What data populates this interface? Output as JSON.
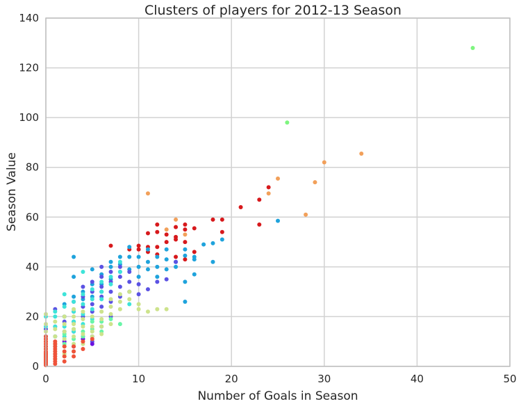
{
  "chart_data": {
    "type": "scatter",
    "title": "Clusters of players for 2012-13 Season",
    "xlabel": "Number of Goals in Season",
    "ylabel": "Season Value",
    "xlim": [
      0,
      50
    ],
    "ylim": [
      0,
      140
    ],
    "xticks": [
      0,
      10,
      20,
      30,
      40,
      50
    ],
    "yticks": [
      0,
      20,
      40,
      60,
      80,
      100,
      120,
      140
    ],
    "grid": true,
    "legend": "none",
    "clusters": [
      {
        "color": "#7ef57f",
        "points": [
          [
            46,
            128
          ],
          [
            26,
            98
          ]
        ]
      },
      {
        "color": "#f2a05a",
        "points": [
          [
            34,
            85.5
          ],
          [
            30,
            82
          ],
          [
            29,
            74
          ],
          [
            25,
            75.5
          ],
          [
            24,
            69.5
          ],
          [
            28,
            61
          ],
          [
            11,
            69.5
          ],
          [
            14,
            59
          ],
          [
            13,
            55
          ],
          [
            15,
            53
          ]
        ]
      },
      {
        "color": "#d7191c",
        "points": [
          [
            24,
            72
          ],
          [
            23,
            67
          ],
          [
            21,
            64
          ],
          [
            19,
            59
          ],
          [
            18,
            59
          ],
          [
            19,
            54
          ],
          [
            23,
            57
          ],
          [
            16,
            55.5
          ],
          [
            15,
            57
          ],
          [
            15,
            55
          ],
          [
            14,
            56
          ],
          [
            14,
            52
          ],
          [
            13,
            53
          ],
          [
            12,
            57
          ],
          [
            12,
            54
          ],
          [
            11,
            53.5
          ],
          [
            11,
            48
          ],
          [
            10,
            48.5
          ],
          [
            10,
            47
          ],
          [
            12,
            48
          ],
          [
            13,
            50
          ],
          [
            14,
            51
          ],
          [
            15,
            50
          ],
          [
            16,
            46
          ],
          [
            15,
            43
          ],
          [
            14,
            44
          ],
          [
            12,
            45
          ],
          [
            11,
            46
          ],
          [
            9,
            47
          ],
          [
            7,
            48.5
          ]
        ]
      },
      {
        "color": "#1fa3dc",
        "points": [
          [
            25,
            58.5
          ],
          [
            19,
            51
          ],
          [
            18,
            49.5
          ],
          [
            17,
            49
          ],
          [
            18,
            42
          ],
          [
            16,
            43
          ],
          [
            16,
            44
          ],
          [
            15,
            47
          ],
          [
            15,
            44.5
          ],
          [
            15,
            34
          ],
          [
            15,
            26
          ],
          [
            14,
            40
          ],
          [
            14,
            42
          ],
          [
            13,
            39
          ],
          [
            13,
            43
          ],
          [
            13,
            47
          ],
          [
            12,
            40
          ],
          [
            12,
            44
          ],
          [
            12,
            36
          ],
          [
            11,
            39
          ],
          [
            11,
            42
          ],
          [
            11,
            47
          ],
          [
            10,
            40
          ],
          [
            10,
            44
          ],
          [
            10,
            36
          ],
          [
            9,
            39
          ],
          [
            9,
            44
          ],
          [
            9,
            48
          ],
          [
            8,
            41
          ],
          [
            8,
            38
          ],
          [
            8,
            44
          ],
          [
            7,
            35
          ],
          [
            7,
            40
          ],
          [
            7,
            42
          ],
          [
            6,
            33
          ],
          [
            6,
            37
          ],
          [
            6,
            30
          ],
          [
            5,
            28
          ],
          [
            5,
            33
          ],
          [
            5,
            39
          ],
          [
            4,
            27
          ],
          [
            4,
            30
          ],
          [
            3,
            36
          ],
          [
            3,
            44
          ],
          [
            3,
            28
          ],
          [
            2,
            25
          ],
          [
            16,
            37
          ]
        ]
      },
      {
        "color": "#5b52e3",
        "points": [
          [
            14,
            42
          ],
          [
            13,
            35
          ],
          [
            12,
            34
          ],
          [
            11,
            31
          ],
          [
            10,
            29
          ],
          [
            10,
            33
          ],
          [
            9,
            30
          ],
          [
            9,
            34
          ],
          [
            9,
            38
          ],
          [
            8,
            28
          ],
          [
            8,
            32
          ],
          [
            8,
            36
          ],
          [
            8,
            40
          ],
          [
            7,
            26
          ],
          [
            7,
            30
          ],
          [
            7,
            34
          ],
          [
            7,
            38
          ],
          [
            6,
            24
          ],
          [
            6,
            28
          ],
          [
            6,
            32
          ],
          [
            6,
            36
          ],
          [
            6,
            40
          ],
          [
            5,
            22
          ],
          [
            5,
            25
          ],
          [
            5,
            30
          ],
          [
            5,
            34
          ],
          [
            4,
            20
          ],
          [
            4,
            24
          ],
          [
            4,
            28
          ],
          [
            4,
            32
          ],
          [
            3,
            18
          ],
          [
            3,
            22
          ],
          [
            3,
            26
          ],
          [
            2,
            14
          ],
          [
            2,
            18
          ],
          [
            2,
            20
          ],
          [
            1,
            12
          ],
          [
            1,
            16
          ],
          [
            1,
            23
          ],
          [
            0,
            12
          ],
          [
            0,
            15
          ],
          [
            5,
            10
          ],
          [
            4,
            12
          ],
          [
            3,
            14
          ],
          [
            6,
            16
          ],
          [
            7,
            20
          ]
        ]
      },
      {
        "color": "#6a11e0",
        "points": [
          [
            5,
            9
          ],
          [
            4,
            11
          ],
          [
            3,
            8
          ],
          [
            2,
            10
          ],
          [
            5,
            12
          ]
        ]
      },
      {
        "color": "#3ee4d9",
        "points": [
          [
            8,
            38
          ],
          [
            7,
            33
          ],
          [
            7,
            36
          ],
          [
            6,
            27
          ],
          [
            6,
            30
          ],
          [
            6,
            34
          ],
          [
            5,
            19
          ],
          [
            5,
            23
          ],
          [
            5,
            27
          ],
          [
            5,
            31
          ],
          [
            4,
            17
          ],
          [
            4,
            21
          ],
          [
            4,
            25
          ],
          [
            4,
            29
          ],
          [
            4,
            38
          ],
          [
            3,
            14
          ],
          [
            3,
            18
          ],
          [
            3,
            22
          ],
          [
            3,
            26
          ],
          [
            2,
            12
          ],
          [
            2,
            16
          ],
          [
            2,
            20
          ],
          [
            2,
            24
          ],
          [
            2,
            29
          ],
          [
            1,
            8
          ],
          [
            1,
            12
          ],
          [
            1,
            16
          ],
          [
            1,
            20
          ],
          [
            1,
            22
          ],
          [
            0,
            8
          ],
          [
            0,
            12
          ],
          [
            0,
            16
          ],
          [
            0,
            20
          ],
          [
            8,
            42
          ],
          [
            9,
            25
          ]
        ]
      },
      {
        "color": "#68f5a8",
        "points": [
          [
            8,
            17
          ],
          [
            7,
            19
          ],
          [
            6,
            14
          ],
          [
            5,
            15
          ],
          [
            4,
            12
          ],
          [
            4,
            14
          ],
          [
            3,
            11
          ],
          [
            3,
            15
          ],
          [
            2,
            9
          ],
          [
            2,
            13
          ],
          [
            1,
            5
          ],
          [
            1,
            9
          ],
          [
            0,
            4
          ],
          [
            0,
            7
          ],
          [
            5,
            18
          ],
          [
            6,
            18
          ]
        ]
      },
      {
        "color": "#cde38c",
        "points": [
          [
            12,
            23
          ],
          [
            11,
            22
          ],
          [
            10,
            25
          ],
          [
            10,
            23
          ],
          [
            9,
            30
          ],
          [
            9,
            27
          ],
          [
            8,
            26
          ],
          [
            8,
            29
          ],
          [
            8,
            23
          ],
          [
            7,
            24
          ],
          [
            7,
            27
          ],
          [
            7,
            17
          ],
          [
            7,
            21
          ],
          [
            6,
            13
          ],
          [
            6,
            16
          ],
          [
            6,
            19
          ],
          [
            6,
            22
          ],
          [
            5,
            12
          ],
          [
            5,
            14
          ],
          [
            5,
            16
          ],
          [
            5,
            20
          ],
          [
            4,
            9
          ],
          [
            4,
            13
          ],
          [
            4,
            16
          ],
          [
            4,
            19
          ],
          [
            4,
            22
          ],
          [
            3,
            6
          ],
          [
            3,
            9
          ],
          [
            3,
            12
          ],
          [
            3,
            15
          ],
          [
            3,
            17
          ],
          [
            3,
            20
          ],
          [
            3,
            23
          ],
          [
            2,
            5
          ],
          [
            2,
            8
          ],
          [
            2,
            11
          ],
          [
            2,
            14
          ],
          [
            2,
            17
          ],
          [
            2,
            20
          ],
          [
            1,
            3
          ],
          [
            1,
            6
          ],
          [
            1,
            9
          ],
          [
            1,
            12
          ],
          [
            1,
            15
          ],
          [
            1,
            18
          ],
          [
            0,
            2
          ],
          [
            0,
            5
          ],
          [
            0,
            10
          ],
          [
            0,
            14
          ],
          [
            0,
            17
          ],
          [
            0,
            21
          ],
          [
            13,
            23
          ]
        ]
      },
      {
        "color": "#ef533a",
        "points": [
          [
            5,
            11
          ],
          [
            4,
            7
          ],
          [
            4,
            10
          ],
          [
            3,
            4
          ],
          [
            3,
            6
          ],
          [
            3,
            8
          ],
          [
            2,
            2
          ],
          [
            2,
            4
          ],
          [
            2,
            6
          ],
          [
            2,
            8
          ],
          [
            1,
            1
          ],
          [
            1,
            2
          ],
          [
            1,
            3
          ],
          [
            1,
            4
          ],
          [
            1,
            5
          ],
          [
            1,
            6
          ],
          [
            1,
            7
          ],
          [
            1,
            8
          ],
          [
            1,
            9
          ],
          [
            1,
            10
          ],
          [
            0,
            0.5
          ],
          [
            0,
            1
          ],
          [
            0,
            1.5
          ],
          [
            0,
            2
          ],
          [
            0,
            2.5
          ],
          [
            0,
            3
          ],
          [
            0,
            3.5
          ],
          [
            0,
            4
          ],
          [
            0,
            4.5
          ],
          [
            0,
            5
          ],
          [
            0,
            5.5
          ],
          [
            0,
            6
          ],
          [
            0,
            7
          ],
          [
            0,
            8
          ],
          [
            0,
            9
          ],
          [
            0,
            10
          ],
          [
            0,
            11
          ],
          [
            0,
            12
          ]
        ]
      }
    ]
  }
}
